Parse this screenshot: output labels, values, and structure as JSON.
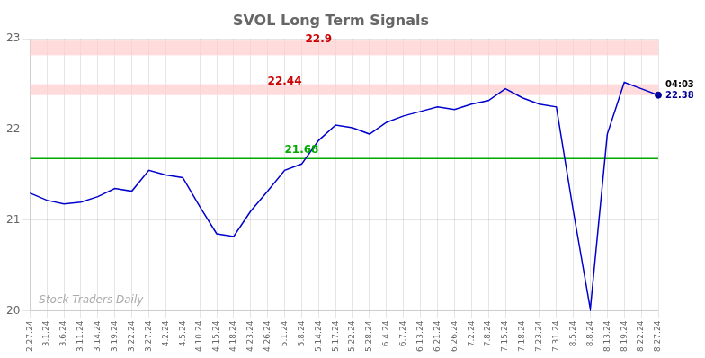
{
  "chart_data": {
    "type": "line",
    "title": "SVOL Long Term Signals",
    "categories": [
      "2.27.24",
      "3.1.24",
      "3.6.24",
      "3.11.24",
      "3.14.24",
      "3.19.24",
      "3.22.24",
      "3.27.24",
      "4.2.24",
      "4.5.24",
      "4.10.24",
      "4.15.24",
      "4.18.24",
      "4.23.24",
      "4.26.24",
      "5.1.24",
      "5.8.24",
      "5.14.24",
      "5.17.24",
      "5.22.24",
      "5.28.24",
      "6.4.24",
      "6.7.24",
      "6.13.24",
      "6.21.24",
      "6.26.24",
      "7.2.24",
      "7.8.24",
      "7.15.24",
      "7.18.24",
      "7.23.24",
      "7.31.24",
      "8.5.24",
      "8.8.24",
      "8.13.24",
      "8.19.24",
      "8.22.24",
      "8.27.24"
    ],
    "values": [
      21.3,
      21.22,
      21.18,
      21.2,
      21.26,
      21.35,
      21.32,
      21.55,
      21.5,
      21.47,
      21.15,
      20.85,
      20.82,
      21.1,
      21.32,
      21.55,
      21.62,
      21.88,
      22.05,
      22.02,
      21.95,
      22.08,
      22.15,
      22.2,
      22.25,
      22.22,
      22.28,
      22.32,
      22.45,
      22.35,
      22.28,
      22.25,
      21.1,
      20.02,
      21.95,
      22.52,
      22.45,
      22.38
    ],
    "color": "#0000cc",
    "ylim": [
      20,
      23
    ],
    "yticks": [
      20,
      21,
      22,
      23
    ],
    "grid": true,
    "bands": [
      {
        "lo": 22.82,
        "hi": 22.98,
        "color": "#ffcccc"
      },
      {
        "lo": 22.38,
        "hi": 22.5,
        "color": "#ffcccc"
      }
    ],
    "hlines": [
      {
        "value": 21.68,
        "color": "#00aa00"
      }
    ],
    "annotations": [
      {
        "text": "22.9",
        "category": "5.14.24",
        "y": 22.9,
        "color": "#cc0000"
      },
      {
        "text": "22.44",
        "category": "5.1.24",
        "y": 22.44,
        "color": "#cc0000"
      },
      {
        "text": "21.68",
        "category": "5.8.24",
        "y": 21.68,
        "color": "#00aa00"
      }
    ],
    "end_point": {
      "value": 22.38,
      "label": "04:03",
      "value_label": "22.38",
      "color": "#000099"
    },
    "watermark": {
      "text": "Stock Traders Daily",
      "color": "#aaaaaa"
    }
  }
}
